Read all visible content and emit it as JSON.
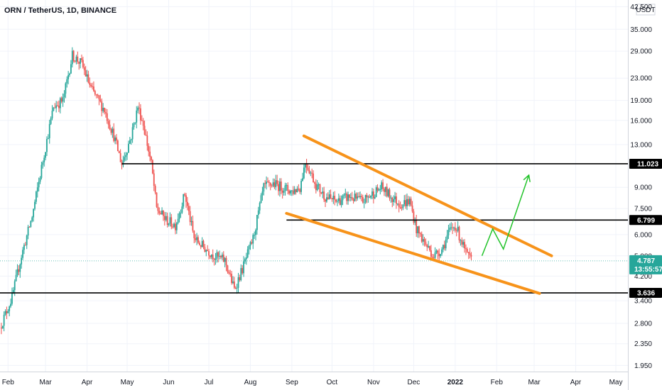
{
  "header": {
    "symbol": "ORN / TetherUS, 1D, BINANCE"
  },
  "price_axis": {
    "currency": "USDT",
    "ticks": [
      "42.500",
      "35.000",
      "29.000",
      "23.000",
      "19.000",
      "16.000",
      "13.000",
      "9.000",
      "7.500",
      "6.000",
      "5.000",
      "4.200",
      "3.400",
      "2.800",
      "2.350",
      "1.950"
    ]
  },
  "time_axis": {
    "ticks": [
      "Feb",
      "Mar",
      "Apr",
      "May",
      "Jun",
      "Jul",
      "Aug",
      "Sep",
      "Oct",
      "Nov",
      "Dec",
      "2022",
      "Feb",
      "Mar",
      "Apr",
      "May"
    ]
  },
  "price_tags": [
    {
      "label": "11.023",
      "kind": "level"
    },
    {
      "label": "6.799",
      "kind": "level"
    },
    {
      "label": "4.787",
      "kind": "last",
      "countdown": "13:55:57"
    },
    {
      "label": "3.636",
      "kind": "level"
    }
  ],
  "colors": {
    "up": "#26a69a",
    "down": "#ef5350",
    "trendline": "#f7931a",
    "projection": "#22c32a",
    "level": "#000000",
    "last_price": "#26a69a"
  },
  "chart_data": {
    "type": "candlestick",
    "title": "ORN / TetherUS, 1D, BINANCE",
    "scale": "log",
    "ylim": [
      1.85,
      45
    ],
    "xlim": [
      "2021-01-26",
      "2022-05-10"
    ],
    "price_path": [
      [
        "2021-01-27",
        2.7
      ],
      [
        "2021-02-05",
        3.5
      ],
      [
        "2021-02-12",
        5.0
      ],
      [
        "2021-02-20",
        7.0
      ],
      [
        "2021-03-01",
        12.0
      ],
      [
        "2021-03-08",
        18.0
      ],
      [
        "2021-03-15",
        19.0
      ],
      [
        "2021-03-22",
        28.0
      ],
      [
        "2021-03-29",
        26.0
      ],
      [
        "2021-04-05",
        21.0
      ],
      [
        "2021-04-15",
        17.5
      ],
      [
        "2021-04-22",
        14.0
      ],
      [
        "2021-04-28",
        11.0
      ],
      [
        "2021-05-05",
        14.0
      ],
      [
        "2021-05-10",
        18.0
      ],
      [
        "2021-05-14",
        15.5
      ],
      [
        "2021-05-20",
        11.0
      ],
      [
        "2021-05-24",
        7.5
      ],
      [
        "2021-05-31",
        6.8
      ],
      [
        "2021-06-07",
        6.5
      ],
      [
        "2021-06-14",
        8.5
      ],
      [
        "2021-06-21",
        5.8
      ],
      [
        "2021-06-28",
        5.4
      ],
      [
        "2021-07-06",
        5.0
      ],
      [
        "2021-07-14",
        4.8
      ],
      [
        "2021-07-21",
        3.75
      ],
      [
        "2021-07-28",
        4.6
      ],
      [
        "2021-08-04",
        5.8
      ],
      [
        "2021-08-12",
        9.0
      ],
      [
        "2021-08-19",
        9.3
      ],
      [
        "2021-08-26",
        9.0
      ],
      [
        "2021-09-02",
        8.7
      ],
      [
        "2021-09-08",
        9.0
      ],
      [
        "2021-09-12",
        11.2
      ],
      [
        "2021-09-15",
        10.5
      ],
      [
        "2021-09-20",
        9.2
      ],
      [
        "2021-09-27",
        8.3
      ],
      [
        "2021-10-05",
        8.0
      ],
      [
        "2021-10-15",
        8.3
      ],
      [
        "2021-10-25",
        8.0
      ],
      [
        "2021-11-01",
        8.5
      ],
      [
        "2021-11-08",
        9.0
      ],
      [
        "2021-11-15",
        8.3
      ],
      [
        "2021-11-22",
        7.8
      ],
      [
        "2021-11-29",
        8.0
      ],
      [
        "2021-12-04",
        6.3
      ],
      [
        "2021-12-10",
        5.6
      ],
      [
        "2021-12-17",
        5.0
      ],
      [
        "2021-12-23",
        5.3
      ],
      [
        "2021-12-29",
        6.2
      ],
      [
        "2022-01-02",
        6.5
      ],
      [
        "2022-01-06",
        5.8
      ],
      [
        "2022-01-10",
        5.1
      ],
      [
        "2022-01-14",
        4.787
      ]
    ],
    "horizontal_levels": [
      11.023,
      6.799,
      3.636
    ],
    "last_price": 4.787,
    "trendlines": [
      {
        "from": [
          "2021-09-10",
          14.0
        ],
        "to": [
          "2022-03-14",
          5.0
        ]
      },
      {
        "from": [
          "2021-08-28",
          7.2
        ],
        "to": [
          "2022-03-05",
          3.62
        ]
      }
    ],
    "projection": [
      [
        "2022-01-21",
        5.0
      ],
      [
        "2022-01-29",
        6.3
      ],
      [
        "2022-02-06",
        5.3
      ],
      [
        "2022-02-25",
        10.0
      ]
    ]
  }
}
